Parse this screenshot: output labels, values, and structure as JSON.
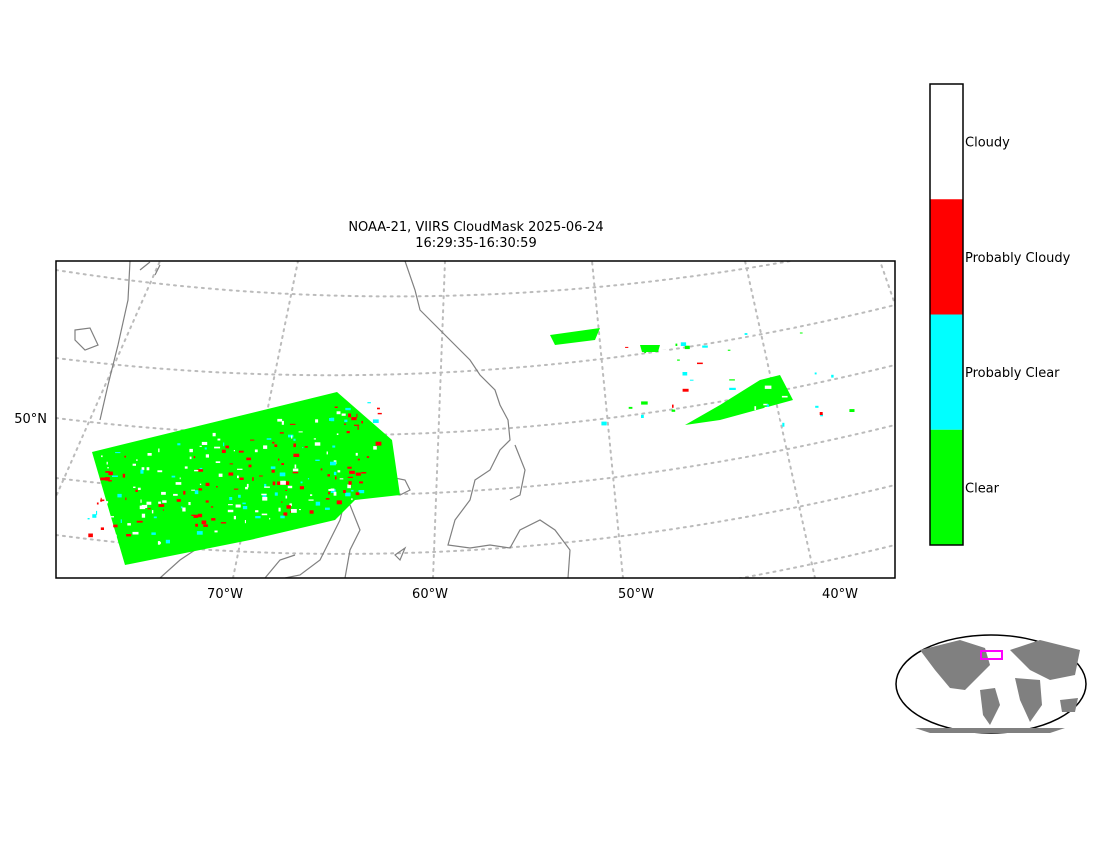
{
  "map": {
    "title": "NOAA-21, VIIRS CloudMask 2025-06-24",
    "subtitle": "16:29:35-16:30:59",
    "lon_labels": [
      "70°W",
      "60°W",
      "50°W",
      "40°W"
    ],
    "lat_labels": [
      "50°N"
    ],
    "legend": [
      {
        "label": "Cloudy",
        "color": "#ffffff"
      },
      {
        "label": "Probably Cloudy",
        "color": "#ff0000"
      },
      {
        "label": "Probably Clear",
        "color": "#00ffff"
      },
      {
        "label": "Clear",
        "color": "#00ff00"
      }
    ]
  }
}
